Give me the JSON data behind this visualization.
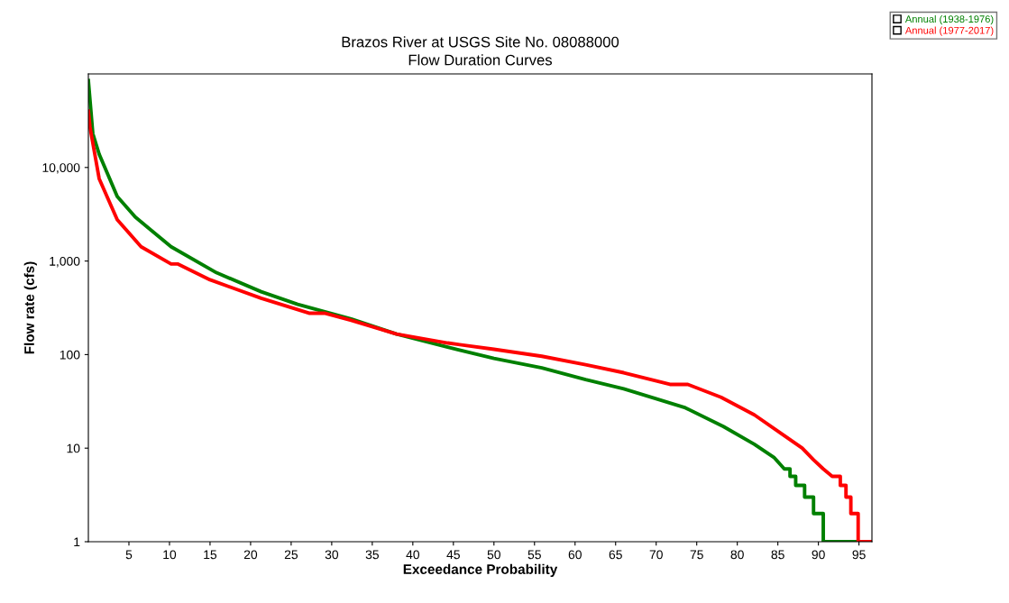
{
  "chart_data": {
    "type": "line",
    "title": "Brazos River at USGS Site No. 08088000",
    "subtitle": "Flow Duration Curves",
    "xlabel": "Exceedance Probability",
    "ylabel": "Flow rate (cfs)",
    "log": "y",
    "grid": false,
    "legend": "top right",
    "marker": "none",
    "line_style": "solid",
    "xlim": [
      0,
      96.6
    ],
    "ylim": [
      1,
      100000
    ],
    "xticks": [
      5,
      10,
      15,
      20,
      25,
      30,
      35,
      40,
      45,
      50,
      55,
      60,
      65,
      70,
      75,
      80,
      85,
      90,
      95
    ],
    "yticks": [
      1,
      10,
      100,
      {
        "value": 1000,
        "label": "1,000"
      },
      {
        "value": 10000,
        "label": "10,000"
      }
    ],
    "series": [
      {
        "name": "Annual (1938-1976)",
        "color": "#008000",
        "x": [
          0,
          0.55,
          1.33,
          3.56,
          5.78,
          10.2,
          15.8,
          21.3,
          25.8,
          32.4,
          38,
          44.3,
          50,
          55.9,
          61.3,
          66,
          69.9,
          73.6,
          78.3,
          82.1,
          84.5,
          85.8,
          86.5,
          86.5,
          87.2,
          87.2,
          88.3,
          88.3,
          89.4,
          89.4,
          90.6,
          90.6,
          96.6
        ],
        "values": [
          85000,
          23000,
          13900,
          4900,
          2950,
          1420,
          750,
          470,
          345,
          240,
          166,
          120,
          91,
          72,
          54,
          43,
          34,
          27,
          17,
          11,
          8,
          6,
          6,
          5,
          5,
          4,
          4,
          3,
          3,
          2,
          2,
          1,
          1
        ]
      },
      {
        "name": "Annual (1977-2017)",
        "color": "#ff0000",
        "x": [
          0,
          0.2,
          1.33,
          3.56,
          6.5,
          10.2,
          11,
          15,
          21.3,
          27.2,
          29.1,
          32.4,
          38,
          44.3,
          50,
          55.9,
          61.3,
          66,
          71.7,
          73.9,
          78,
          82.1,
          85.8,
          88,
          89.4,
          90.6,
          91.7,
          92.7,
          92.7,
          93.4,
          93.4,
          94,
          94,
          94.9,
          94.9,
          96.6
        ],
        "values": [
          40000,
          27000,
          7600,
          2770,
          1420,
          930,
          930,
          630,
          400,
          277,
          277,
          232,
          166,
          133,
          114,
          96,
          78,
          64,
          48,
          48,
          35,
          22.7,
          13.6,
          10,
          7.5,
          6,
          5,
          5,
          4,
          4,
          3,
          3,
          2,
          2,
          1,
          1
        ]
      }
    ]
  }
}
